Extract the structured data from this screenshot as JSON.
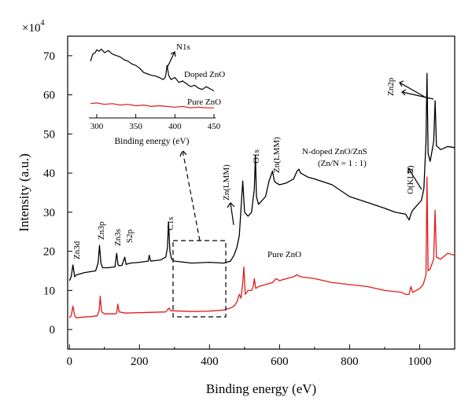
{
  "chart_data": {
    "type": "line",
    "main": {
      "xlabel": "Binding energy (eV)",
      "ylabel": "Intensity (a.u.)",
      "y_multiplier": "×10",
      "y_multiplier_exp": "4",
      "xlim": [
        -5,
        1100
      ],
      "ylim": [
        -5,
        75
      ],
      "x_ticks": [
        0,
        200,
        400,
        600,
        800,
        1000
      ],
      "x_tick_labels": [
        "0",
        "200",
        "400",
        "600",
        "800",
        "1000"
      ],
      "y_ticks": [
        0,
        10,
        20,
        30,
        40,
        50,
        60,
        70
      ],
      "y_tick_labels": [
        "0",
        "10",
        "20",
        "30",
        "40",
        "50",
        "60",
        "70"
      ],
      "series": [
        {
          "name": "N-doped ZnO/ZnS",
          "color": "#000000",
          "x": [
            0,
            5,
            10,
            15,
            20,
            30,
            40,
            60,
            75,
            82,
            86,
            90,
            95,
            110,
            130,
            135,
            139,
            143,
            150,
            158,
            162,
            166,
            175,
            200,
            225,
            228,
            232,
            260,
            275,
            280,
            283,
            287,
            292,
            300,
            350,
            400,
            440,
            460,
            470,
            478,
            485,
            490,
            495,
            500,
            510,
            520,
            528,
            531,
            534,
            540,
            560,
            570,
            580,
            585,
            590,
            600,
            620,
            640,
            650,
            655,
            660,
            680,
            700,
            750,
            800,
            850,
            900,
            930,
            960,
            970,
            975,
            980,
            990,
            1005,
            1012,
            1018,
            1021,
            1024,
            1030,
            1040,
            1044,
            1048,
            1060,
            1080,
            1100
          ],
          "y": [
            12.5,
            13.5,
            16.5,
            13.5,
            14.0,
            14.2,
            14.5,
            14.8,
            15.0,
            17.0,
            21.5,
            17.0,
            15.8,
            15.8,
            16.0,
            19.5,
            16.5,
            16.3,
            16.4,
            18.5,
            16.6,
            16.8,
            17.0,
            17.2,
            17.5,
            19.0,
            17.5,
            17.8,
            18.5,
            21.0,
            27.5,
            20.0,
            18.0,
            17.5,
            17.0,
            17.2,
            17.0,
            17.5,
            19.0,
            21.0,
            24.0,
            31.0,
            38.0,
            30.0,
            29.0,
            30.0,
            36.0,
            44.5,
            34.0,
            32.0,
            34.0,
            38.0,
            40.5,
            38.0,
            37.5,
            37.0,
            37.5,
            38.5,
            40.5,
            41.0,
            40.0,
            39.0,
            38.5,
            37.0,
            34.0,
            32.5,
            31.0,
            30.0,
            29.5,
            28.0,
            29.5,
            30.5,
            31.5,
            33.0,
            36.0,
            48.0,
            65.5,
            45.0,
            43.0,
            48.0,
            58.5,
            47.0,
            46.0,
            46.8,
            46.5
          ]
        },
        {
          "name": "Pure ZnO",
          "color": "#e01b1b",
          "x": [
            0,
            5,
            10,
            15,
            20,
            40,
            60,
            80,
            85,
            88,
            92,
            100,
            130,
            135,
            138,
            142,
            160,
            200,
            275,
            280,
            284,
            290,
            350,
            400,
            440,
            460,
            470,
            478,
            485,
            490,
            495,
            498,
            502,
            510,
            520,
            525,
            528,
            532,
            540,
            580,
            585,
            590,
            600,
            620,
            640,
            650,
            660,
            700,
            750,
            800,
            850,
            900,
            950,
            960,
            970,
            975,
            980,
            1000,
            1010,
            1015,
            1018,
            1021,
            1024,
            1030,
            1040,
            1044,
            1048,
            1060,
            1080,
            1100
          ],
          "y": [
            3.0,
            3.5,
            6.0,
            3.5,
            3.0,
            3.2,
            3.3,
            3.5,
            5.0,
            8.5,
            4.5,
            4.0,
            4.0,
            4.2,
            6.5,
            4.5,
            4.2,
            4.3,
            4.5,
            5.0,
            5.5,
            4.8,
            4.6,
            4.7,
            5.0,
            5.5,
            6.0,
            7.0,
            9.0,
            8.0,
            12.0,
            16.0,
            9.0,
            10.0,
            10.0,
            11.0,
            13.0,
            10.5,
            11.0,
            12.0,
            12.5,
            13.0,
            12.5,
            13.0,
            13.5,
            14.0,
            13.5,
            13.0,
            12.0,
            11.5,
            11.0,
            10.0,
            9.5,
            9.0,
            9.0,
            11.0,
            9.5,
            10.5,
            11.5,
            13.0,
            14.0,
            39.0,
            15.0,
            15.5,
            18.0,
            30.5,
            18.5,
            18.0,
            19.5,
            19.0
          ]
        }
      ],
      "annotations": {
        "zn3d": "Zn3d",
        "zn3p": "Zn3p",
        "zn3s": "Zn3s",
        "s2p": "S2p",
        "c1s": "C1s",
        "zn_lmm_1": "Zn(LMM)",
        "o1s": "O1s",
        "zn_lmm_2": "Zn(LMM)",
        "sample": "N-doped ZnO/ZnS",
        "ratio": "(Zn/N = 1 : 1)",
        "o_kll": "O(KLL)",
        "zn2p": "Zn2p",
        "pure": "Pure ZnO"
      }
    },
    "inset": {
      "xlabel": "Binding energy (eV)",
      "xlim": [
        290,
        452
      ],
      "x_ticks": [
        300,
        350,
        400,
        450
      ],
      "x_tick_labels": [
        "300",
        "350",
        "400",
        "450"
      ],
      "labels": {
        "n1s": "N1s",
        "doped": "Doped ZnO",
        "pure": "Pure ZnO"
      },
      "series": [
        {
          "name": "Doped ZnO",
          "color": "#000000",
          "x": [
            292,
            295,
            298,
            300,
            303,
            306,
            310,
            315,
            320,
            325,
            330,
            335,
            340,
            345,
            350,
            355,
            360,
            365,
            370,
            375,
            380,
            385,
            388,
            390,
            392,
            395,
            400,
            405,
            410,
            415,
            420,
            425,
            430,
            435,
            440,
            445,
            450
          ],
          "y": [
            0.78,
            0.88,
            0.9,
            0.94,
            0.92,
            0.95,
            0.9,
            0.93,
            0.88,
            0.86,
            0.84,
            0.8,
            0.78,
            0.74,
            0.72,
            0.68,
            0.62,
            0.6,
            0.58,
            0.57,
            0.55,
            0.52,
            0.56,
            0.72,
            0.58,
            0.52,
            0.55,
            0.48,
            0.5,
            0.46,
            0.42,
            0.44,
            0.4,
            0.38,
            0.42,
            0.39,
            0.36
          ]
        },
        {
          "name": "Pure ZnO",
          "color": "#e01b1b",
          "x": [
            292,
            300,
            310,
            320,
            330,
            340,
            350,
            360,
            370,
            380,
            390,
            400,
            410,
            420,
            430,
            440,
            450
          ],
          "y": [
            0.18,
            0.19,
            0.17,
            0.18,
            0.16,
            0.17,
            0.15,
            0.16,
            0.14,
            0.15,
            0.14,
            0.13,
            0.14,
            0.12,
            0.13,
            0.12,
            0.12
          ]
        }
      ]
    }
  }
}
